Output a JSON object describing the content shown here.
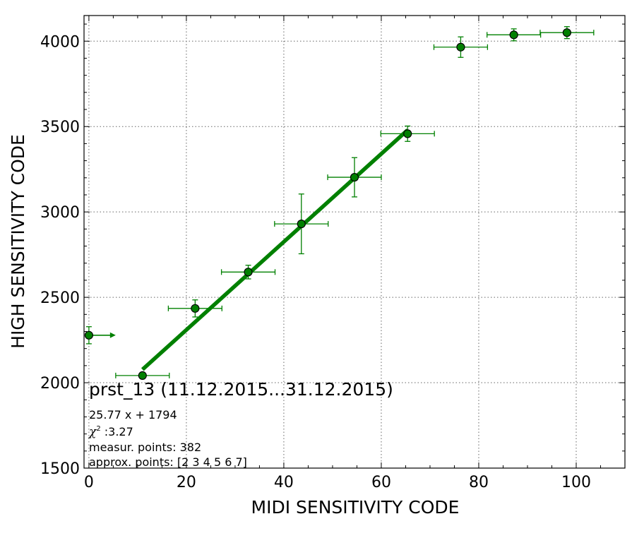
{
  "chart_data": {
    "type": "scatter",
    "xlabel": "MIDI SENSITIVITY CODE",
    "ylabel": "HIGH SENSITIVITY CODE",
    "xlim": [
      -1,
      110
    ],
    "ylim": [
      1500,
      4150
    ],
    "xticks": [
      0,
      20,
      40,
      60,
      80,
      100
    ],
    "yticks": [
      1500,
      2000,
      2500,
      3000,
      3500,
      4000
    ],
    "grid": true,
    "grid_style": "dotted",
    "colors": {
      "points": "#008000",
      "fit": "#008000",
      "marker_edge": "#000000"
    },
    "points": [
      {
        "x": 0,
        "y": 2278,
        "xerr": 0,
        "yerr": 50,
        "arrow_to_x": 5.5
      },
      {
        "x": 11,
        "y": 2042,
        "xerr": 5.5,
        "yerr": 0
      },
      {
        "x": 21.8,
        "y": 2435,
        "xerr": 5.5,
        "yerr": 50
      },
      {
        "x": 32.7,
        "y": 2648,
        "xerr": 5.5,
        "yerr": 40
      },
      {
        "x": 43.6,
        "y": 2930,
        "xerr": 5.5,
        "yerr": 175
      },
      {
        "x": 54.5,
        "y": 3203,
        "xerr": 5.5,
        "yerr": 115
      },
      {
        "x": 65.4,
        "y": 3458,
        "xerr": 5.5,
        "yerr": 45
      },
      {
        "x": 76.3,
        "y": 3965,
        "xerr": 5.5,
        "yerr": 60
      },
      {
        "x": 87.2,
        "y": 4037,
        "xerr": 5.5,
        "yerr": 35
      },
      {
        "x": 98.1,
        "y": 4050,
        "xerr": 5.5,
        "yerr": 35
      }
    ],
    "fit": {
      "slope": 25.77,
      "intercept": 1794,
      "x_range": [
        11,
        65.4
      ]
    }
  },
  "annotation": {
    "title": "prst_13 (11.12.2015...31.12.2015)",
    "equation": "25.77 x + 1794",
    "chi_symbol": "χ",
    "chi_superscript": "2",
    "chi_value": " :3.27",
    "measur_points": "measur. points: 382",
    "approx_points": "approx. points: [2 3 4 5 6 7]"
  }
}
